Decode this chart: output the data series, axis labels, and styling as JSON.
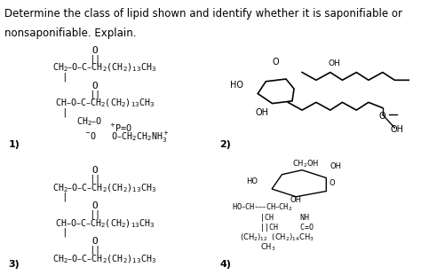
{
  "title_line1": "Determine the class of lipid shown and identify whether it is saponifiable or",
  "title_line2": "nonsaponifiable. Explain.",
  "title_fontsize": 8.5,
  "title_color": "#000000",
  "bg_color": "#ffffff",
  "panel_bg1": "#d8d8d0",
  "panel_bg2": "#c8c8c0",
  "panel_bg3": "#c8c0b8",
  "panel_bg4": "#b8b8b0",
  "label1": "1)",
  "label2": "2)",
  "label3": "3)",
  "label4": "4)",
  "struct1_lines": [
    "O",
    "||",
    "CH₂–O–C–CH₂(CH₂)₁₃CH₃",
    "|        O",
    "|        ||",
    "CH–O–C–CH₂(CH₂)₁₃CH₃",
    "|",
    "CH₂–O₂⁺=O",
    "          –O    O–CH₂CH₂NH₃⁺"
  ],
  "struct2_lines": [
    "O",
    "||",
    "CH₂–O–C–CH₂(CH₂)₁₃CH₃",
    "|        O",
    "|        ||",
    "CH–O–C–CH₂(CH₂)₁₃CH₃",
    "|        O",
    "|        ||",
    "CH₂–O–C–CH₂(CH₂)₁₃CH₃"
  ]
}
